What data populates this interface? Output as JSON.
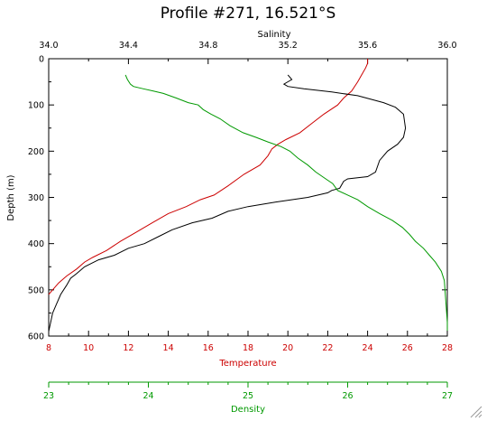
{
  "chart_data": {
    "type": "line",
    "title": "Profile #271, 16.521°S",
    "y_axis": {
      "label": "Depth (m)",
      "range": [
        0,
        600
      ],
      "ticks": [
        0,
        100,
        200,
        300,
        400,
        500,
        600
      ],
      "tick_labels": [
        "0",
        "100",
        "200",
        "300",
        "400",
        "500",
        "600"
      ],
      "inverted": true
    },
    "x_axes": [
      {
        "key": "salinity",
        "label": "Salinity",
        "position": "top",
        "color": "#000000",
        "range": [
          34.0,
          36.0
        ],
        "ticks": [
          34.0,
          34.4,
          34.8,
          35.2,
          35.6,
          36.0
        ],
        "tick_labels": [
          "34.0",
          "34.4",
          "34.8",
          "35.2",
          "35.6",
          "36.0"
        ]
      },
      {
        "key": "temperature",
        "label": "Temperature",
        "position": "bottom",
        "color": "#cc0000",
        "range": [
          8,
          28
        ],
        "ticks": [
          8,
          10,
          12,
          14,
          16,
          18,
          20,
          22,
          24,
          26,
          28
        ],
        "tick_labels": [
          "8",
          "10",
          "12",
          "14",
          "16",
          "18",
          "20",
          "22",
          "24",
          "26",
          "28"
        ]
      },
      {
        "key": "density",
        "label": "Density",
        "position": "bottom-detached",
        "color": "#009900",
        "range": [
          23,
          27
        ],
        "ticks": [
          23,
          24,
          25,
          26,
          27
        ],
        "tick_labels": [
          "23",
          "24",
          "25",
          "26",
          "27"
        ]
      }
    ],
    "series": [
      {
        "key": "temperature",
        "color": "#cc0000",
        "points": [
          [
            24.0,
            0
          ],
          [
            24.0,
            10
          ],
          [
            23.9,
            20
          ],
          [
            23.7,
            35
          ],
          [
            23.5,
            50
          ],
          [
            23.2,
            70
          ],
          [
            22.8,
            85
          ],
          [
            22.5,
            100
          ],
          [
            21.8,
            120
          ],
          [
            21.2,
            140
          ],
          [
            20.6,
            160
          ],
          [
            19.9,
            175
          ],
          [
            19.5,
            185
          ],
          [
            19.2,
            195
          ],
          [
            19.0,
            210
          ],
          [
            18.6,
            230
          ],
          [
            17.8,
            250
          ],
          [
            17.0,
            275
          ],
          [
            16.3,
            295
          ],
          [
            15.6,
            305
          ],
          [
            14.9,
            320
          ],
          [
            14.0,
            335
          ],
          [
            13.2,
            355
          ],
          [
            12.4,
            375
          ],
          [
            11.6,
            395
          ],
          [
            10.9,
            415
          ],
          [
            10.2,
            430
          ],
          [
            9.8,
            440
          ],
          [
            9.4,
            455
          ],
          [
            8.9,
            470
          ],
          [
            8.5,
            485
          ],
          [
            8.2,
            500
          ],
          [
            8.0,
            510
          ]
        ]
      },
      {
        "key": "salinity",
        "color": "#000000",
        "points": [
          [
            35.2,
            35
          ],
          [
            35.22,
            45
          ],
          [
            35.18,
            55
          ],
          [
            35.2,
            60
          ],
          [
            35.28,
            65
          ],
          [
            35.42,
            72
          ],
          [
            35.55,
            80
          ],
          [
            35.68,
            95
          ],
          [
            35.74,
            105
          ],
          [
            35.78,
            120
          ],
          [
            35.79,
            150
          ],
          [
            35.78,
            170
          ],
          [
            35.75,
            185
          ],
          [
            35.7,
            200
          ],
          [
            35.66,
            220
          ],
          [
            35.64,
            245
          ],
          [
            35.6,
            255
          ],
          [
            35.5,
            260
          ],
          [
            35.48,
            265
          ],
          [
            35.46,
            280
          ],
          [
            35.42,
            285
          ],
          [
            35.4,
            290
          ],
          [
            35.3,
            300
          ],
          [
            35.14,
            310
          ],
          [
            35.0,
            320
          ],
          [
            34.9,
            330
          ],
          [
            34.82,
            345
          ],
          [
            34.72,
            355
          ],
          [
            34.62,
            370
          ],
          [
            34.55,
            385
          ],
          [
            34.48,
            400
          ],
          [
            34.4,
            410
          ],
          [
            34.33,
            425
          ],
          [
            34.25,
            435
          ],
          [
            34.18,
            450
          ],
          [
            34.14,
            465
          ],
          [
            34.11,
            475
          ],
          [
            34.09,
            490
          ],
          [
            34.06,
            510
          ],
          [
            34.04,
            530
          ],
          [
            34.02,
            550
          ],
          [
            34.01,
            570
          ],
          [
            34.0,
            590
          ],
          [
            34.0,
            600
          ]
        ]
      },
      {
        "key": "density",
        "color": "#009900",
        "points": [
          [
            23.77,
            35
          ],
          [
            23.79,
            45
          ],
          [
            23.82,
            55
          ],
          [
            23.85,
            60
          ],
          [
            23.95,
            65
          ],
          [
            24.05,
            70
          ],
          [
            24.15,
            75
          ],
          [
            24.28,
            85
          ],
          [
            24.4,
            95
          ],
          [
            24.5,
            100
          ],
          [
            24.55,
            110
          ],
          [
            24.63,
            120
          ],
          [
            24.72,
            130
          ],
          [
            24.82,
            145
          ],
          [
            24.95,
            160
          ],
          [
            25.08,
            170
          ],
          [
            25.2,
            180
          ],
          [
            25.33,
            190
          ],
          [
            25.42,
            200
          ],
          [
            25.5,
            215
          ],
          [
            25.6,
            230
          ],
          [
            25.68,
            245
          ],
          [
            25.78,
            260
          ],
          [
            25.85,
            270
          ],
          [
            25.9,
            285
          ],
          [
            26.0,
            295
          ],
          [
            26.1,
            305
          ],
          [
            26.2,
            320
          ],
          [
            26.32,
            335
          ],
          [
            26.45,
            350
          ],
          [
            26.55,
            365
          ],
          [
            26.62,
            380
          ],
          [
            26.68,
            395
          ],
          [
            26.76,
            410
          ],
          [
            26.82,
            425
          ],
          [
            26.88,
            440
          ],
          [
            26.94,
            460
          ],
          [
            26.97,
            480
          ],
          [
            26.98,
            510
          ],
          [
            26.99,
            540
          ],
          [
            27.0,
            570
          ],
          [
            27.0,
            600
          ]
        ]
      }
    ]
  }
}
